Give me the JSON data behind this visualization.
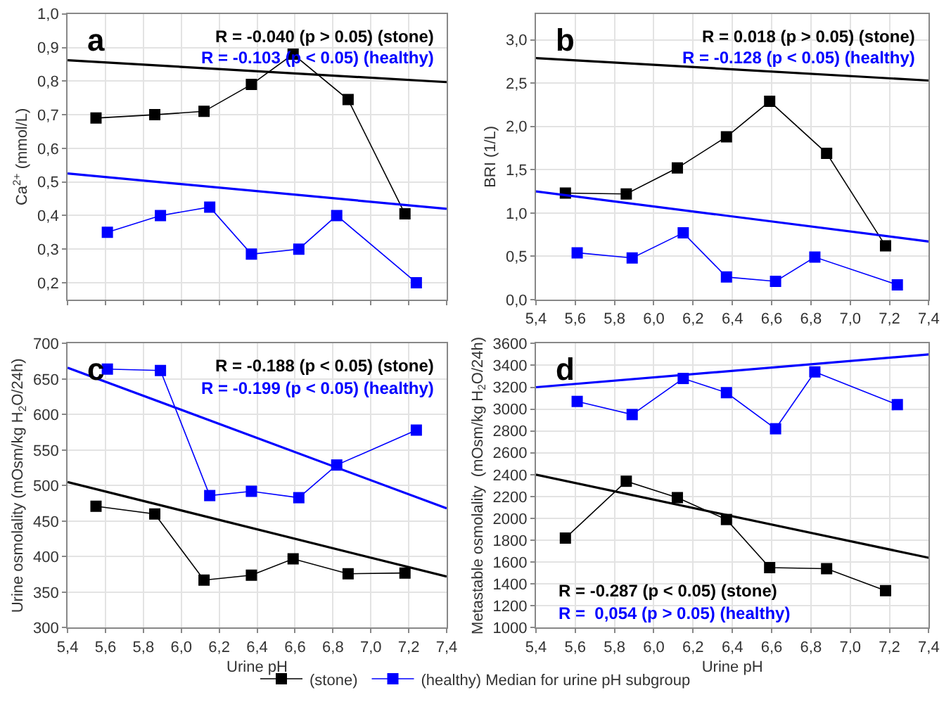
{
  "chart_data": [
    {
      "type": "line",
      "title": "a",
      "ylabel": "Ca$^{2+}$ (mmol/L)",
      "xlim": [
        5.4,
        7.4
      ],
      "ylim": [
        0.15,
        1.0
      ],
      "xticks": [
        {
          "value": 5.4,
          "label": null
        },
        {
          "value": 5.6,
          "label": null
        },
        {
          "value": 5.8,
          "label": null
        },
        {
          "value": 6.0,
          "label": null
        },
        {
          "value": 6.2,
          "label": null
        },
        {
          "value": 6.4,
          "label": null
        },
        {
          "value": 6.6,
          "label": null
        },
        {
          "value": 6.8,
          "label": null
        },
        {
          "value": 7.0,
          "label": null
        },
        {
          "value": 7.2,
          "label": null
        },
        {
          "value": 7.4,
          "label": null
        }
      ],
      "yticks": [
        {
          "value": 0.2,
          "label": "0,2"
        },
        {
          "value": 0.3,
          "label": "0,3"
        },
        {
          "value": 0.4,
          "label": "0,4"
        },
        {
          "value": 0.5,
          "label": "0,5"
        },
        {
          "value": 0.6,
          "label": "0,6"
        },
        {
          "value": 0.7,
          "label": "0,7"
        },
        {
          "value": 0.8,
          "label": "0,8"
        },
        {
          "value": 0.9,
          "label": "0,9"
        },
        {
          "value": 1.0,
          "label": "1,0"
        }
      ],
      "tick_labels": "y",
      "grid": true,
      "legend": "bottom",
      "marker": "square",
      "line_style": "solid",
      "annotations": [
        "R = -0.040 (p > 0.05) (stone)",
        "R = -0.103 (p < 0.05) (healthy)"
      ],
      "series": [
        {
          "name": "(stone)",
          "color": "#000000",
          "x": [
            5.55,
            5.86,
            6.12,
            6.37,
            6.59,
            6.88,
            7.18
          ],
          "values": [
            0.69,
            0.7,
            0.71,
            0.79,
            0.88,
            0.745,
            0.405
          ]
        },
        {
          "name": "(healthy) Median for urine pH subgroup",
          "color": "#0000ff",
          "x": [
            5.61,
            5.89,
            6.15,
            6.37,
            6.62,
            6.82,
            7.24
          ],
          "values": [
            0.35,
            0.4,
            0.425,
            0.285,
            0.3,
            0.4,
            0.2
          ]
        },
        {
          "type": "line",
          "marker": "none",
          "color": "#000000",
          "x": [
            5.4,
            7.4
          ],
          "values": [
            0.862,
            0.797
          ]
        },
        {
          "type": "line",
          "marker": "none",
          "color": "#0000ff",
          "x": [
            5.4,
            7.4
          ],
          "values": [
            0.525,
            0.42
          ]
        }
      ]
    },
    {
      "type": "line",
      "title": "b",
      "ylabel": "BRI (1/L)",
      "xlim": [
        5.4,
        7.4
      ],
      "ylim": [
        0,
        3.3
      ],
      "xticks": [
        {
          "value": 5.4,
          "label": "5,4"
        },
        {
          "value": 5.6,
          "label": "5,6"
        },
        {
          "value": 5.8,
          "label": "5,8"
        },
        {
          "value": 6.0,
          "label": "6,0"
        },
        {
          "value": 6.2,
          "label": "6,2"
        },
        {
          "value": 6.4,
          "label": "6,4"
        },
        {
          "value": 6.6,
          "label": "6,6"
        },
        {
          "value": 6.8,
          "label": "6,8"
        },
        {
          "value": 7.0,
          "label": "7,0"
        },
        {
          "value": 7.2,
          "label": "7,2"
        },
        {
          "value": 7.4,
          "label": "7,4"
        }
      ],
      "yticks": [
        {
          "value": 0,
          "label": "0,0"
        },
        {
          "value": 0.5,
          "label": "0,5"
        },
        {
          "value": 1.0,
          "label": "1,0"
        },
        {
          "value": 1.5,
          "label": "1,5"
        },
        {
          "value": 2.0,
          "label": "2,0"
        },
        {
          "value": 2.5,
          "label": "2,5"
        },
        {
          "value": 3.0,
          "label": "3,0"
        }
      ],
      "grid": true,
      "legend": "bottom",
      "marker": "square",
      "line_style": "solid",
      "annotations": [
        "R = 0.018 (p > 0.05) (stone)",
        "R = -0.128 (p < 0.05) (healthy)"
      ],
      "series": [
        {
          "name": "(stone)",
          "color": "#000000",
          "x": [
            5.55,
            5.86,
            6.12,
            6.37,
            6.59,
            6.88,
            7.18
          ],
          "values": [
            1.23,
            1.22,
            1.52,
            1.88,
            2.29,
            1.69,
            0.62
          ]
        },
        {
          "name": "(healthy) Median for urine pH subgroup",
          "color": "#0000ff",
          "x": [
            5.61,
            5.89,
            6.15,
            6.37,
            6.62,
            6.82,
            7.24
          ],
          "values": [
            0.54,
            0.48,
            0.77,
            0.26,
            0.21,
            0.49,
            0.17
          ]
        },
        {
          "type": "line",
          "marker": "none",
          "color": "#000000",
          "x": [
            5.4,
            7.4
          ],
          "values": [
            2.79,
            2.53
          ]
        },
        {
          "type": "line",
          "marker": "none",
          "color": "#0000ff",
          "x": [
            5.4,
            7.4
          ],
          "values": [
            1.25,
            0.67
          ]
        }
      ]
    },
    {
      "type": "line",
      "title": "c",
      "xlabel": "Urine pH",
      "ylabel": "Urine osmolality (mOsm/kg H$_{2}$O/24h)",
      "xlim": [
        5.4,
        7.4
      ],
      "ylim": [
        300,
        700
      ],
      "xticks": [
        {
          "value": 5.4,
          "label": "5,4"
        },
        {
          "value": 5.6,
          "label": "5,6"
        },
        {
          "value": 5.8,
          "label": "5,8"
        },
        {
          "value": 6.0,
          "label": "6,0"
        },
        {
          "value": 6.2,
          "label": "6,2"
        },
        {
          "value": 6.4,
          "label": "6,4"
        },
        {
          "value": 6.6,
          "label": "6,6"
        },
        {
          "value": 6.8,
          "label": "6,8"
        },
        {
          "value": 7.0,
          "label": "7,0"
        },
        {
          "value": 7.2,
          "label": "7,2"
        },
        {
          "value": 7.4,
          "label": "7,4"
        }
      ],
      "yticks": [
        300,
        350,
        400,
        450,
        500,
        550,
        600,
        650,
        700
      ],
      "grid": true,
      "legend": "bottom",
      "marker": "square",
      "line_style": "solid",
      "annotations": [
        "R = -0.188 (p < 0.05) (stone)",
        "R = -0.199 (p < 0.05) (healthy)"
      ],
      "series": [
        {
          "name": "(stone)",
          "color": "#000000",
          "x": [
            5.55,
            5.86,
            6.12,
            6.37,
            6.59,
            6.88,
            7.18
          ],
          "values": [
            471,
            460,
            367,
            374,
            397,
            376,
            377
          ]
        },
        {
          "name": "(healthy) Median for urine pH subgroup",
          "color": "#0000ff",
          "x": [
            5.61,
            5.89,
            6.15,
            6.37,
            6.62,
            6.82,
            7.24
          ],
          "values": [
            664,
            662,
            486,
            492,
            483,
            529,
            578
          ]
        },
        {
          "type": "line",
          "marker": "none",
          "color": "#000000",
          "x": [
            5.4,
            7.4
          ],
          "values": [
            505,
            372
          ]
        },
        {
          "type": "line",
          "marker": "none",
          "color": "#0000ff",
          "x": [
            5.4,
            7.4
          ],
          "values": [
            666,
            468
          ]
        }
      ]
    },
    {
      "type": "line",
      "title": "d",
      "xlabel": "Urine pH",
      "ylabel": "Metastable osmolality  (mOsm/kg H$_{2}$O/24h)",
      "xlim": [
        5.4,
        7.4
      ],
      "ylim": [
        1000,
        3600
      ],
      "xticks": [
        {
          "value": 5.4,
          "label": "5,4"
        },
        {
          "value": 5.6,
          "label": "5,6"
        },
        {
          "value": 5.8,
          "label": "5,8"
        },
        {
          "value": 6.0,
          "label": "6,0"
        },
        {
          "value": 6.2,
          "label": "6,2"
        },
        {
          "value": 6.4,
          "label": "6,4"
        },
        {
          "value": 6.6,
          "label": "6,6"
        },
        {
          "value": 6.8,
          "label": "6,8"
        },
        {
          "value": 7.0,
          "label": "7,0"
        },
        {
          "value": 7.2,
          "label": "7,2"
        },
        {
          "value": 7.4,
          "label": "7,4"
        }
      ],
      "yticks": [
        1000,
        1200,
        1400,
        1600,
        1800,
        2000,
        2200,
        2400,
        2600,
        2800,
        3000,
        3200,
        3400,
        3600
      ],
      "grid": true,
      "legend": "bottom",
      "marker": "square",
      "line_style": "solid",
      "annotations": [
        "R = -0.287 (p < 0.05) (stone)",
        "R =  0,054 (p > 0.05) (healthy)"
      ],
      "series": [
        {
          "name": "(stone)",
          "color": "#000000",
          "x": [
            5.55,
            5.86,
            6.12,
            6.37,
            6.59,
            6.88,
            7.18
          ],
          "values": [
            1820,
            2340,
            2190,
            1990,
            1550,
            1540,
            1340
          ]
        },
        {
          "name": "(healthy) Median for urine pH subgroup",
          "color": "#0000ff",
          "x": [
            5.61,
            5.89,
            6.15,
            6.37,
            6.62,
            6.82,
            7.24
          ],
          "values": [
            3070,
            2950,
            3280,
            3150,
            2820,
            3340,
            3040
          ]
        },
        {
          "type": "line",
          "marker": "none",
          "color": "#000000",
          "x": [
            5.4,
            7.4
          ],
          "values": [
            2400,
            1640
          ]
        },
        {
          "type": "line",
          "marker": "none",
          "color": "#0000ff",
          "x": [
            5.4,
            7.4
          ],
          "values": [
            3200,
            3500
          ]
        }
      ]
    }
  ]
}
